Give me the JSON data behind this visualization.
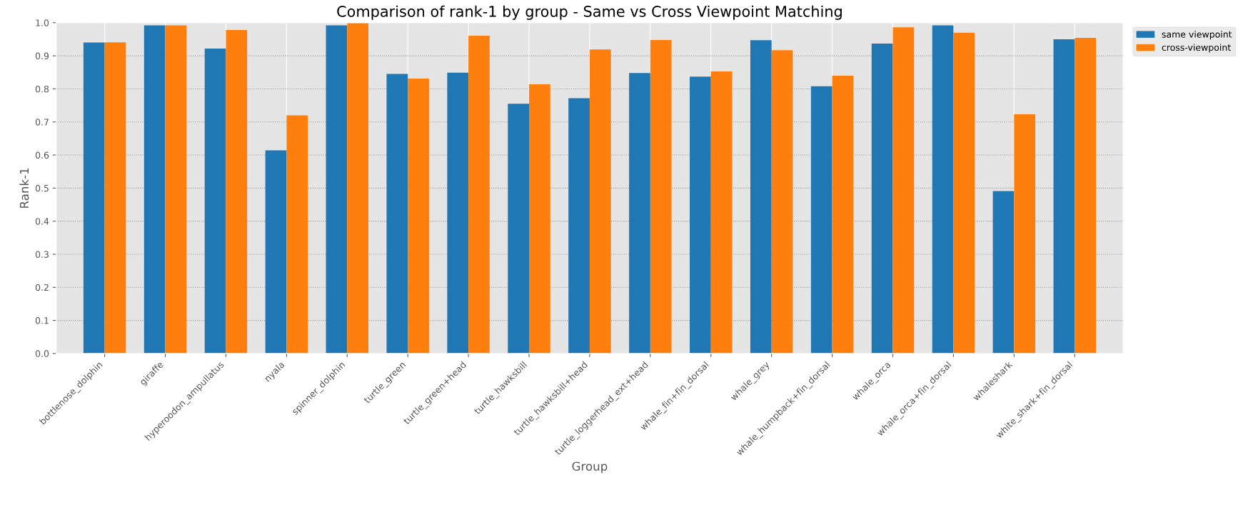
{
  "chart_data": {
    "type": "bar",
    "title": "Comparison of rank-1 by group - Same vs Cross Viewpoint Matching",
    "xlabel": "Group",
    "ylabel": "Rank-1",
    "categories": [
      "bottlenose_dolphin",
      "giraffe",
      "hyperoodon_ampullatus",
      "nyala",
      "spinner_dolphin",
      "turtle_green",
      "turtle_green+head",
      "turtle_hawksbill",
      "turtle_hawksbill+head",
      "turtle_loggerhead_ext+head",
      "whale_fin+fin_dorsal",
      "whale_grey",
      "whale_humpback+fin_dorsal",
      "whale_orca",
      "whale_orca+fin_dorsal",
      "whaleshark",
      "white_shark+fin_dorsal"
    ],
    "series": [
      {
        "name": "same viewpoint",
        "color": "#1f77b4",
        "values": [
          0.94,
          0.992,
          0.922,
          0.614,
          0.992,
          0.845,
          0.849,
          0.755,
          0.772,
          0.848,
          0.837,
          0.947,
          0.808,
          0.937,
          0.992,
          0.491,
          0.95
        ]
      },
      {
        "name": "cross-viewpoint",
        "color": "#ff7f0e",
        "values": [
          0.941,
          0.992,
          0.978,
          0.72,
          1.0,
          0.831,
          0.961,
          0.814,
          0.919,
          0.948,
          0.853,
          0.917,
          0.84,
          0.986,
          0.97,
          0.723,
          0.954
        ]
      }
    ],
    "ylim": [
      0,
      1.0
    ],
    "yticks": [
      {
        "value": 0,
        "label": "0.0"
      },
      {
        "value": 0.1,
        "label": "0.1"
      },
      {
        "value": 0.2,
        "label": "0.2"
      },
      {
        "value": 0.3,
        "label": "0.3"
      },
      {
        "value": 0.4,
        "label": "0.4"
      },
      {
        "value": 0.5,
        "label": "0.5"
      },
      {
        "value": 0.6,
        "label": "0.6"
      },
      {
        "value": 0.7,
        "label": "0.7"
      },
      {
        "value": 0.8,
        "label": "0.8"
      },
      {
        "value": 0.9,
        "label": "0.9"
      },
      {
        "value": 1.0,
        "label": "1.0"
      }
    ],
    "grid": true,
    "legend": "top right"
  }
}
